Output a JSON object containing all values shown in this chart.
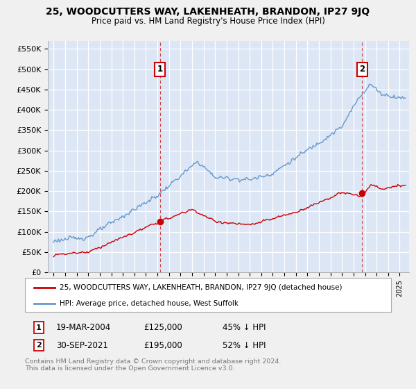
{
  "title": "25, WOODCUTTERS WAY, LAKENHEATH, BRANDON, IP27 9JQ",
  "subtitle": "Price paid vs. HM Land Registry's House Price Index (HPI)",
  "ylim": [
    0,
    570000
  ],
  "yticks": [
    0,
    50000,
    100000,
    150000,
    200000,
    250000,
    300000,
    350000,
    400000,
    450000,
    500000,
    550000
  ],
  "ytick_labels": [
    "£0",
    "£50K",
    "£100K",
    "£150K",
    "£200K",
    "£250K",
    "£300K",
    "£350K",
    "£400K",
    "£450K",
    "£500K",
    "£550K"
  ],
  "xlim_start": 1994.5,
  "xlim_end": 2025.8,
  "fig_bg_color": "#f0f0f0",
  "plot_bg_color": "#dce6f5",
  "grid_color": "#ffffff",
  "red_color": "#cc0000",
  "blue_color": "#6699cc",
  "transaction1_x": 2004.21,
  "transaction1_y": 125000,
  "transaction1_label": "1",
  "transaction2_x": 2021.75,
  "transaction2_y": 195000,
  "transaction2_label": "2",
  "legend_line1": "25, WOODCUTTERS WAY, LAKENHEATH, BRANDON, IP27 9JQ (detached house)",
  "legend_line2": "HPI: Average price, detached house, West Suffolk",
  "annot1_num": "1",
  "annot1_date": "19-MAR-2004",
  "annot1_price": "£125,000",
  "annot1_hpi": "45% ↓ HPI",
  "annot2_num": "2",
  "annot2_date": "30-SEP-2021",
  "annot2_price": "£195,000",
  "annot2_hpi": "52% ↓ HPI",
  "footnote_line1": "Contains HM Land Registry data © Crown copyright and database right 2024.",
  "footnote_line2": "This data is licensed under the Open Government Licence v3.0."
}
